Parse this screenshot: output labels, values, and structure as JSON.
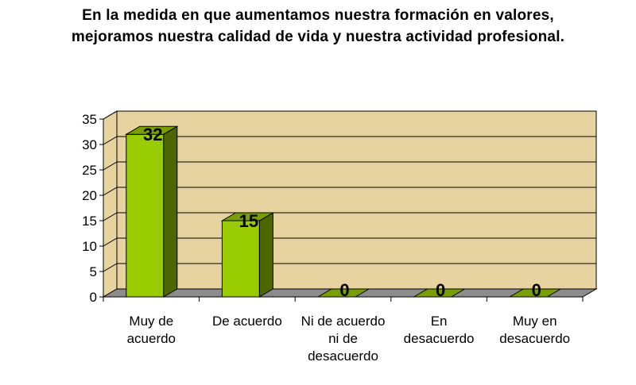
{
  "title_lines": [
    "En la medida en que aumentamos nuestra formación en valores,",
    "mejoramos nuestra calidad de vida y nuestra actividad profesional."
  ],
  "colors": {
    "wall": "#e6d3a0",
    "floor": "#8c8c8c",
    "bar_front": "#99cc00",
    "bar_side": "#4d6600",
    "bar_top": "#7a9e00"
  },
  "chart_data": {
    "type": "bar",
    "categories": [
      [
        "Muy de",
        "acuerdo"
      ],
      [
        "De acuerdo"
      ],
      [
        "Ni de acuerdo",
        "ni de",
        "desacuerdo"
      ],
      [
        "En",
        "desacuerdo"
      ],
      [
        "Muy en",
        "desacuerdo"
      ]
    ],
    "values": [
      32,
      15,
      0,
      0,
      0
    ],
    "data_labels": [
      "32",
      "15",
      "0",
      "0",
      "0"
    ],
    "ylim": [
      0,
      35
    ],
    "yticks": [
      0,
      5,
      10,
      15,
      20,
      25,
      30,
      35
    ],
    "grid": true,
    "legend": "none"
  }
}
